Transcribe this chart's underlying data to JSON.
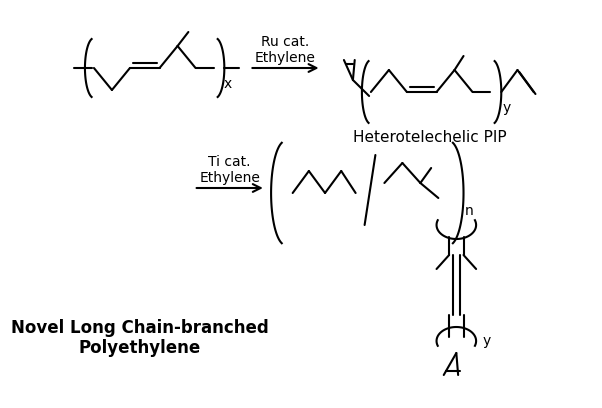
{
  "bg_color": "#ffffff",
  "lc": "#000000",
  "lw": 1.5,
  "ru_label": "Ru cat.\nEthylene",
  "ti_label": "Ti cat.\nEthylene",
  "pip_label": "Heterotelechelic PIP",
  "lcb_label": "Novel Long Chain-branched\nPolyethylene"
}
